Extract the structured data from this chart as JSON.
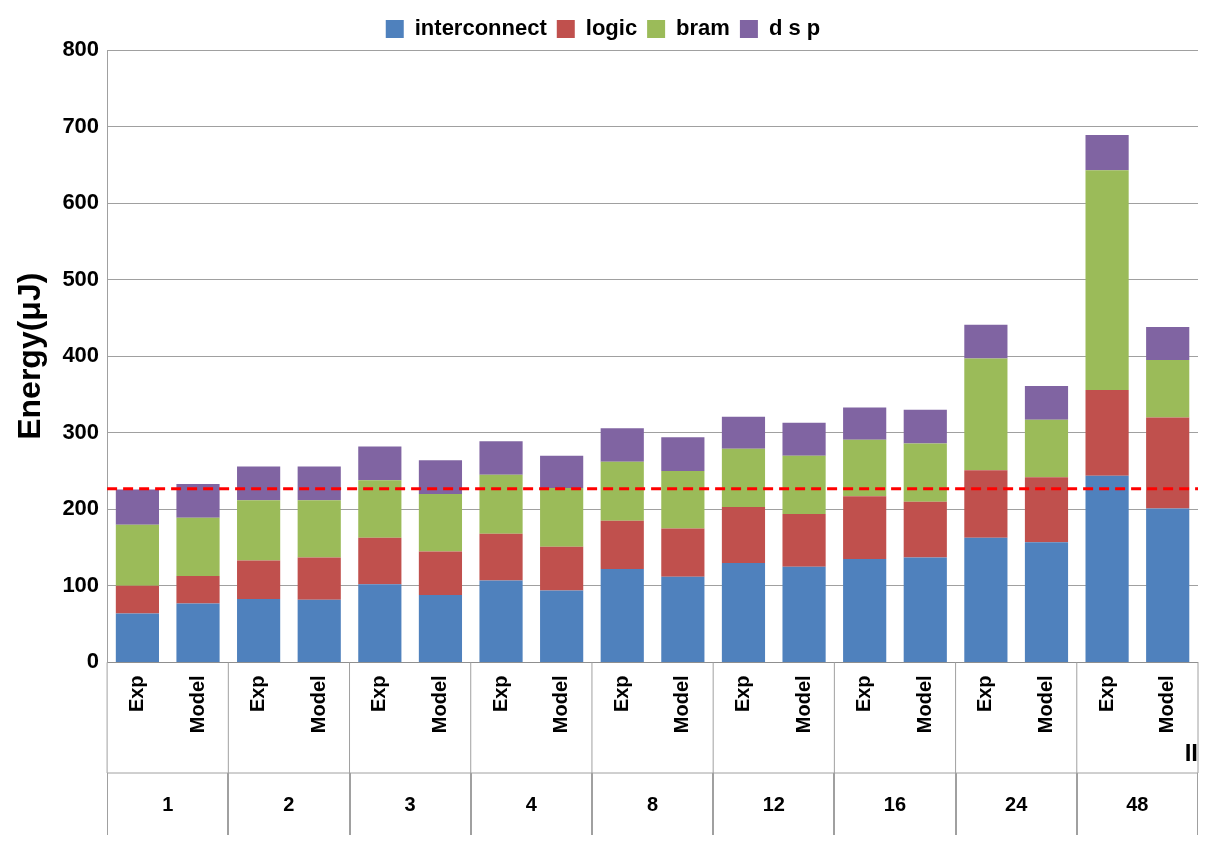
{
  "chart_data": {
    "type": "bar",
    "stacked": true,
    "ylabel": "Energy(μJ)",
    "xlabel": "II",
    "categories": [
      "Exp",
      "Model",
      "Exp",
      "Model",
      "Exp",
      "Model",
      "Exp",
      "Model",
      "Exp",
      "Model",
      "Exp",
      "Model",
      "Exp",
      "Model",
      "Exp",
      "Model",
      "Exp",
      "Model"
    ],
    "annotations": [
      "1",
      "2",
      "3",
      "4",
      "8",
      "12",
      "16",
      "24",
      "48"
    ],
    "series": [
      {
        "name": "interconnect",
        "color": "#4f81bd",
        "values": [
          64,
          77,
          83,
          82,
          102,
          88,
          107,
          94,
          122,
          112,
          130,
          125,
          135,
          137,
          163,
          157,
          244,
          201
        ]
      },
      {
        "name": "logic",
        "color": "#c0504d",
        "values": [
          36,
          36,
          50,
          55,
          61,
          57,
          61,
          57,
          63,
          63,
          73,
          69,
          82,
          73,
          88,
          85,
          112,
          119
        ]
      },
      {
        "name": "bram",
        "color": "#9bbb59",
        "values": [
          80,
          76,
          79,
          75,
          75,
          75,
          77,
          77,
          77,
          75,
          76,
          76,
          74,
          76,
          146,
          75,
          287,
          75
        ]
      },
      {
        "name": "d s p",
        "color": "#8064a2",
        "values": [
          46,
          44,
          44,
          44,
          44,
          44,
          44,
          42,
          44,
          44,
          42,
          43,
          42,
          44,
          44,
          44,
          46,
          43
        ]
      }
    ],
    "ylim": [
      0,
      800
    ],
    "yticks": [
      0,
      100,
      200,
      300,
      400,
      500,
      600,
      700,
      800
    ],
    "grid": "y",
    "legend": "top",
    "ref_lines": [
      {
        "axis": "y",
        "value": 227,
        "color": "#ff0000",
        "line_style": "dashed"
      }
    ]
  }
}
